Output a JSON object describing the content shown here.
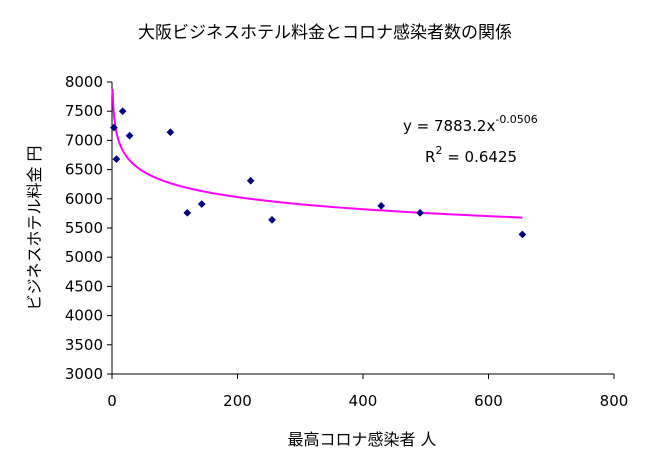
{
  "chart_data": {
    "type": "scatter",
    "title": "大阪ビジネスホテル料金とコロナ感染者数の関係",
    "xlabel": "最高コロナ感染者 人",
    "ylabel": "ビジネスホテル料金 円",
    "xlim": [
      0,
      800
    ],
    "ylim": [
      3000,
      8000
    ],
    "x_ticks": [
      0,
      200,
      400,
      600,
      800
    ],
    "y_ticks": [
      3000,
      3500,
      4000,
      4500,
      5000,
      5500,
      6000,
      6500,
      7000,
      7500,
      8000
    ],
    "grid": false,
    "legend": false,
    "series": [
      {
        "values": [
          {
            "x": 3,
            "y": 7220
          },
          {
            "x": 7,
            "y": 6680
          },
          {
            "x": 17,
            "y": 7500
          },
          {
            "x": 28,
            "y": 7080
          },
          {
            "x": 93,
            "y": 7140
          },
          {
            "x": 120,
            "y": 5760
          },
          {
            "x": 143,
            "y": 5910
          },
          {
            "x": 221,
            "y": 6310
          },
          {
            "x": 255,
            "y": 5640
          },
          {
            "x": 429,
            "y": 5880
          },
          {
            "x": 491,
            "y": 5760
          },
          {
            "x": 654,
            "y": 5390
          }
        ],
        "color": "#000080",
        "marker": "diamond"
      }
    ],
    "trendline": {
      "type": "power",
      "coefficient": 7883.2,
      "exponent": -0.0506,
      "x_range": [
        1,
        654
      ],
      "color": "#ff00ff",
      "equation_text": "y = 7883.2x",
      "equation_exponent": "-0.0506",
      "r2_text": "R",
      "r2_superscript": "2",
      "r2_value_text": " = 0.6425"
    }
  }
}
